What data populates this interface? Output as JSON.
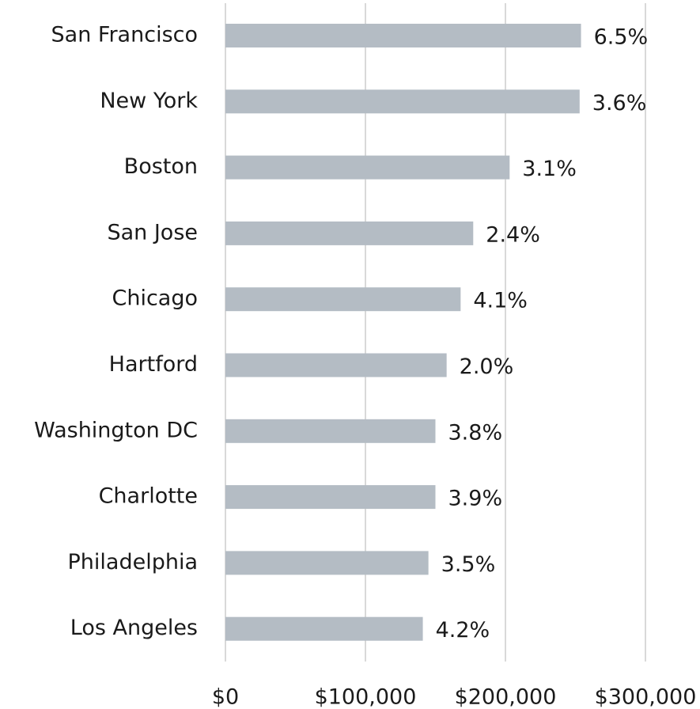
{
  "chart_data": {
    "type": "bar",
    "orientation": "horizontal",
    "categories": [
      "San Francisco",
      "New York",
      "Boston",
      "San Jose",
      "Chicago",
      "Hartford",
      "Washington DC",
      "Charlotte",
      "Philadelphia",
      "Los Angeles"
    ],
    "values": [
      254000,
      253000,
      203000,
      177000,
      168000,
      158000,
      150000,
      150000,
      145000,
      141000
    ],
    "bar_labels": [
      "6.5%",
      "3.6%",
      "3.1%",
      "2.4%",
      "4.1%",
      "2.0%",
      "3.8%",
      "3.9%",
      "3.5%",
      "4.2%"
    ],
    "color": "#b4bcc4",
    "xlim": [
      0,
      300000
    ],
    "xticks": [
      {
        "value": 0,
        "label": "$0"
      },
      {
        "value": 100000,
        "label": "$100,000"
      },
      {
        "value": 200000,
        "label": "$200,000"
      },
      {
        "value": 300000,
        "label": "$300,000"
      }
    ],
    "grid": true
  }
}
